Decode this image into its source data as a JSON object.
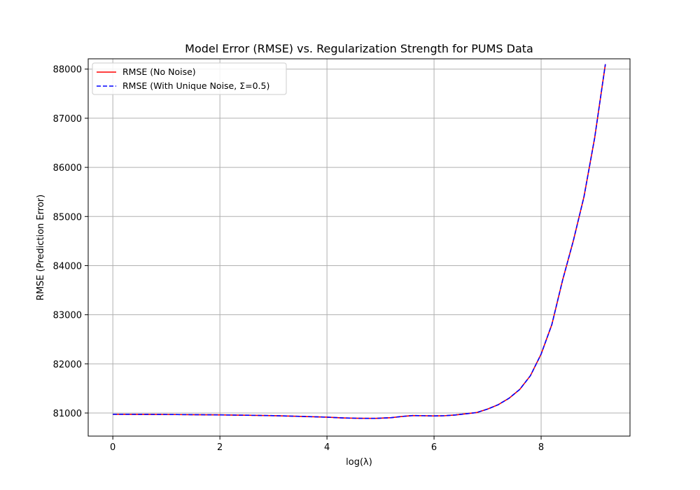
{
  "chart_data": {
    "type": "line",
    "title": "Model Error (RMSE) vs. Regularization Strength for PUMS Data",
    "xlabel": "log(λ)",
    "ylabel": "RMSE (Prediction Error)",
    "xlim": [
      -0.46,
      9.66
    ],
    "ylim": [
      80530,
      88210
    ],
    "xticks": [
      0,
      2,
      4,
      6,
      8
    ],
    "yticks": [
      81000,
      82000,
      83000,
      84000,
      85000,
      86000,
      87000,
      88000
    ],
    "grid": true,
    "legend_position": "top-left",
    "series": [
      {
        "name": "RMSE (No Noise)",
        "color": "#ff0000",
        "style": "solid",
        "x": [
          0,
          0.5,
          1,
          1.5,
          2,
          2.5,
          3,
          3.5,
          4,
          4.3,
          4.6,
          4.9,
          5.2,
          5.4,
          5.6,
          5.8,
          6,
          6.2,
          6.4,
          6.6,
          6.8,
          7,
          7.2,
          7.4,
          7.6,
          7.8,
          8,
          8.2,
          8.4,
          8.6,
          8.8,
          9,
          9.2
        ],
        "y": [
          80975,
          80973,
          80970,
          80966,
          80962,
          80955,
          80946,
          80932,
          80915,
          80900,
          80892,
          80890,
          80905,
          80930,
          80948,
          80945,
          80940,
          80945,
          80960,
          80985,
          81010,
          81080,
          81170,
          81300,
          81480,
          81760,
          82200,
          82800,
          83700,
          84500,
          85400,
          86600,
          88100
        ]
      },
      {
        "name": "RMSE (With Unique Noise, Σ=0.5)",
        "color": "#0000ff",
        "style": "dashed",
        "x": [
          0,
          0.5,
          1,
          1.5,
          2,
          2.5,
          3,
          3.5,
          4,
          4.3,
          4.6,
          4.9,
          5.2,
          5.4,
          5.6,
          5.8,
          6,
          6.2,
          6.4,
          6.6,
          6.8,
          7,
          7.2,
          7.4,
          7.6,
          7.8,
          8,
          8.2,
          8.4,
          8.6,
          8.8,
          9,
          9.2
        ],
        "y": [
          80975,
          80973,
          80970,
          80966,
          80962,
          80955,
          80946,
          80932,
          80915,
          80900,
          80892,
          80890,
          80905,
          80930,
          80948,
          80945,
          80940,
          80945,
          80960,
          80985,
          81010,
          81080,
          81170,
          81300,
          81480,
          81760,
          82200,
          82800,
          83700,
          84500,
          85400,
          86600,
          88100
        ]
      }
    ]
  }
}
